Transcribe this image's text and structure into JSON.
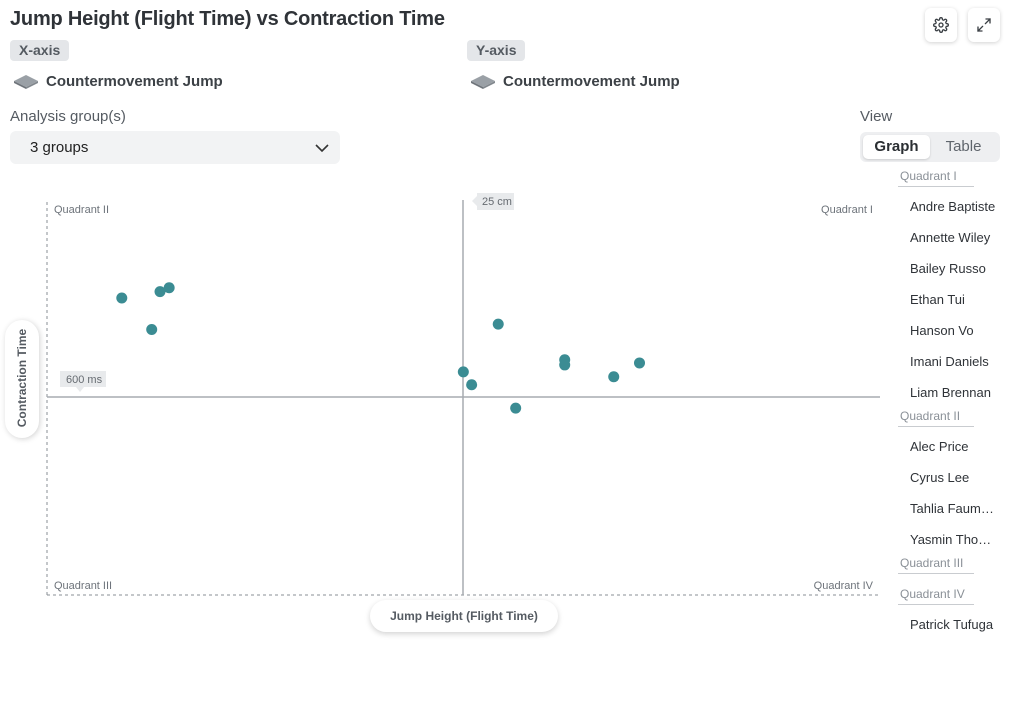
{
  "header": {
    "title": "Jump Height (Flight Time) vs Contraction Time",
    "settings_icon": "gear-icon",
    "expand_icon": "expand-icon"
  },
  "axes": {
    "x_tag": "X-axis",
    "y_tag": "Y-axis",
    "x_metric": "Countermovement Jump",
    "y_metric": "Countermovement Jump",
    "metric_icon": "force-plate-icon"
  },
  "analysis": {
    "label": "Analysis group(s)",
    "value": "3 groups"
  },
  "view": {
    "label": "View",
    "options": [
      "Graph",
      "Table"
    ],
    "selected": "Graph"
  },
  "chart_data": {
    "type": "scatter",
    "xlabel": "Jump Height (Flight Time)",
    "ylabel": "Contraction Time",
    "x_reference": "25 cm",
    "y_reference": "600 ms",
    "quadrants": [
      "Quadrant I",
      "Quadrant II",
      "Quadrant III",
      "Quadrant IV"
    ],
    "point_color": "#3b8c93",
    "points": [
      {
        "x": 0.09,
        "y": 0.5
      },
      {
        "x": 0.126,
        "y": 0.341
      },
      {
        "x": 0.136,
        "y": 0.532
      },
      {
        "x": 0.147,
        "y": 0.552
      },
      {
        "x": 0.501,
        "y": 0.127
      },
      {
        "x": 0.511,
        "y": 0.062
      },
      {
        "x": 0.543,
        "y": 0.368
      },
      {
        "x": 0.564,
        "y": -0.056
      },
      {
        "x": 0.623,
        "y": 0.188
      },
      {
        "x": 0.623,
        "y": 0.162
      },
      {
        "x": 0.682,
        "y": 0.102
      },
      {
        "x": 0.713,
        "y": 0.172
      }
    ]
  },
  "legend": [
    {
      "group": "Quadrant I",
      "members": [
        "Andre Baptiste",
        "Annette Wiley",
        "Bailey Russo",
        "Ethan Tui",
        "Hanson Vo",
        "Imani Daniels",
        "Liam Brennan"
      ]
    },
    {
      "group": "Quadrant II",
      "members": [
        "Alec Price",
        "Cyrus Lee",
        "Tahlia Faumui...",
        "Yasmin Thom..."
      ]
    },
    {
      "group": "Quadrant III",
      "members": []
    },
    {
      "group": "Quadrant IV",
      "members": [
        "Patrick Tufuga"
      ]
    }
  ]
}
